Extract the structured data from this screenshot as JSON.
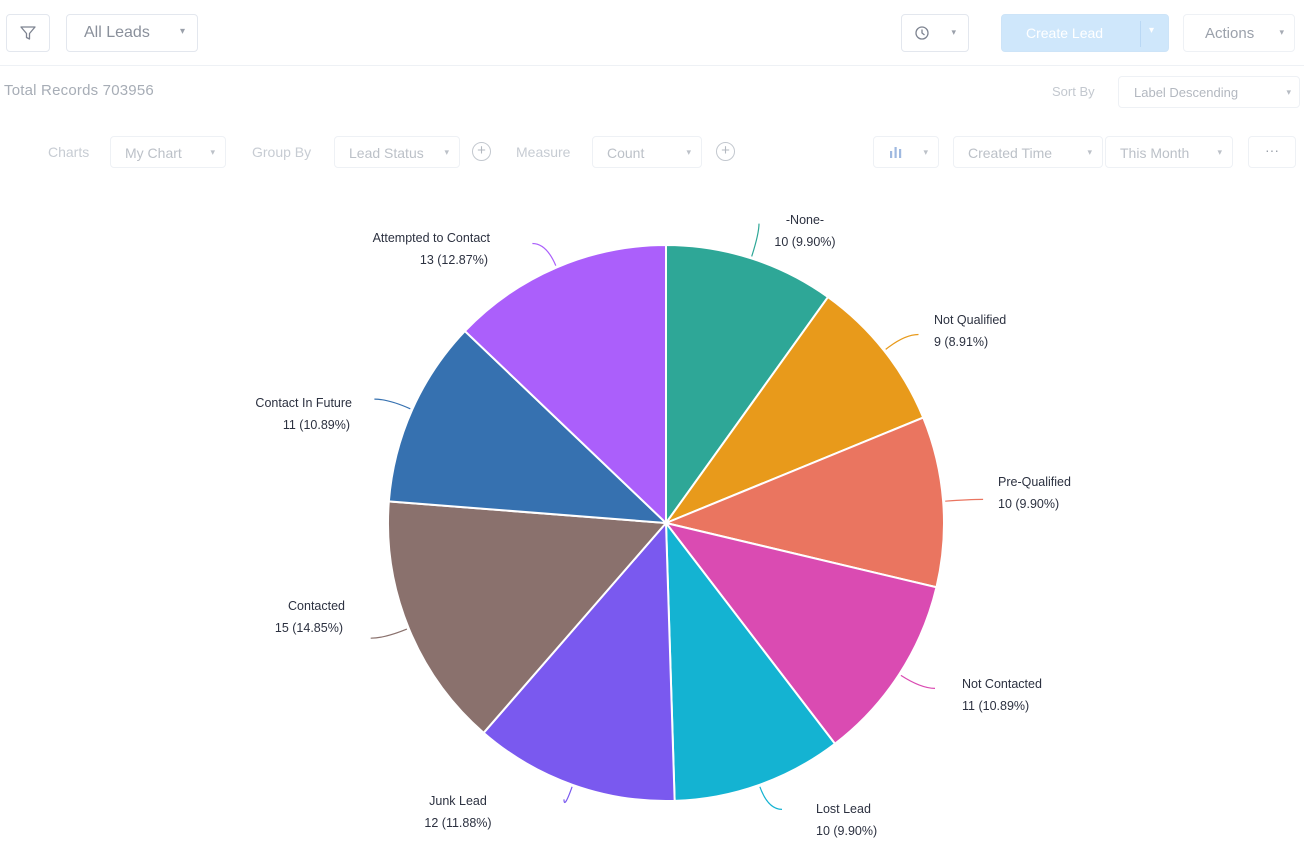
{
  "toolbar": {
    "view_selector": "All Leads",
    "create_label": "Create Lead",
    "actions_label": "Actions"
  },
  "records": {
    "label": "Total Records 703956"
  },
  "sort": {
    "label": "Sort By",
    "value": "Label Descending"
  },
  "chart_controls": {
    "charts_label": "Charts",
    "chart_value": "My Chart",
    "group_by_label": "Group By",
    "group_by_value": "Lead Status",
    "measure_label": "Measure",
    "measure_value": "Count",
    "date_field": "Created Time",
    "date_range": "This Month",
    "more_label": "···"
  },
  "icons": {
    "filter": "filter-icon",
    "clock": "clock-icon",
    "chart_type": "bar-chart-icon",
    "add": "plus-circle-icon"
  },
  "colors": {
    "create_button_bg": "#cfe7fb"
  },
  "chart_data": {
    "type": "pie",
    "title": "",
    "slices": [
      {
        "label": "-None-",
        "value": 10,
        "percent": "9.90%",
        "color": "#2ea797"
      },
      {
        "label": "Not Qualified",
        "value": 9,
        "percent": "8.91%",
        "color": "#e89a1b"
      },
      {
        "label": "Pre-Qualified",
        "value": 10,
        "percent": "9.90%",
        "color": "#ea7560"
      },
      {
        "label": "Not Contacted",
        "value": 11,
        "percent": "10.89%",
        "color": "#da4bb2"
      },
      {
        "label": "Lost Lead",
        "value": 10,
        "percent": "9.90%",
        "color": "#14b3d2"
      },
      {
        "label": "Junk Lead",
        "value": 12,
        "percent": "11.88%",
        "color": "#7a59ef"
      },
      {
        "label": "Contacted",
        "value": 15,
        "percent": "14.85%",
        "color": "#8a716d"
      },
      {
        "label": "Contact In Future",
        "value": 11,
        "percent": "10.89%",
        "color": "#3671b0"
      },
      {
        "label": "Attempted to Contact",
        "value": 13,
        "percent": "12.87%",
        "color": "#ab5ffb"
      }
    ]
  }
}
